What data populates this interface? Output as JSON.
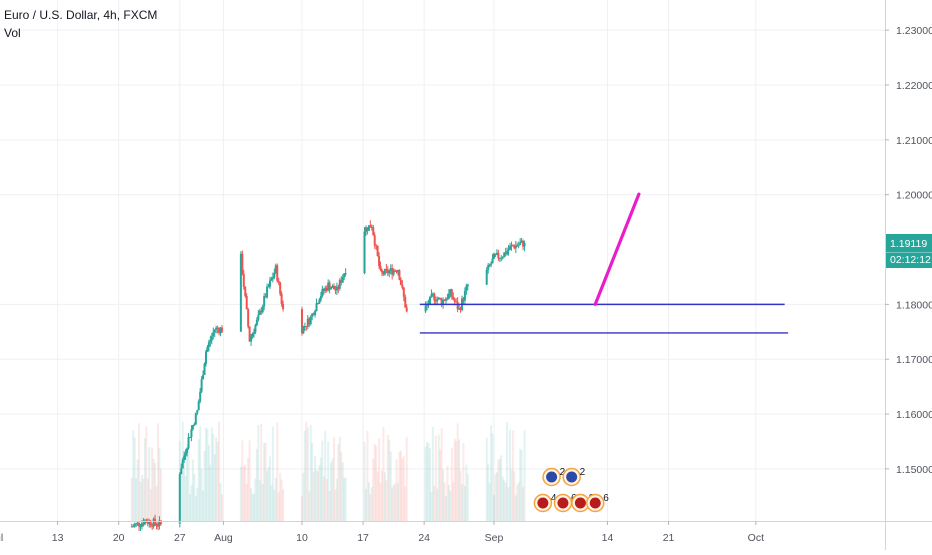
{
  "legend": {
    "symbol": "Euro / U.S. Dollar, 4h, FXCM",
    "volume_label": "Vol"
  },
  "price_scale": {
    "labels": [
      "1.23000",
      "1.22000",
      "1.21000",
      "1.20000",
      "1.18000",
      "1.17000",
      "1.16000",
      "1.15000"
    ],
    "current_price": "1.19119",
    "countdown": "02:12:12",
    "badge_color": "#26a69a"
  },
  "chart_data": {
    "type": "candlestick",
    "symbol": "EURUSD",
    "timeframe": "4h",
    "source": "FXCM",
    "x_tick_labels": [
      "Jul",
      "13",
      "20",
      "27",
      "Aug",
      "10",
      "17",
      "24",
      "Sep",
      "14",
      "21",
      "Oct"
    ],
    "y_tick_labels": [
      "1.23000",
      "1.22000",
      "1.21000",
      "1.20000",
      "1.18000",
      "1.17000",
      "1.16000",
      "1.15000"
    ],
    "ylim": [
      1.1405,
      1.2355
    ],
    "xlim_days": [
      0.4,
      101.8
    ],
    "colors": {
      "up": "#26a69a",
      "down": "#ef5350",
      "support": "#3333cc",
      "projection": "#e91ec8"
    },
    "close_path": {
      "day": [
        15.5,
        17,
        19,
        20,
        21,
        22,
        23,
        24,
        25,
        26,
        27,
        28,
        29,
        30,
        31,
        32,
        33,
        34,
        35,
        36,
        37,
        38,
        39,
        40,
        41,
        42,
        43,
        44,
        45,
        46,
        47,
        48,
        49,
        50,
        51,
        52,
        53,
        54,
        55,
        56,
        57,
        58,
        59,
        60,
        60.5
      ],
      "price": [
        1.1395,
        1.1405,
        1.1398,
        1.1445,
        1.1495,
        1.1555,
        1.1605,
        1.1715,
        1.1755,
        1.1755,
        1.1805,
        1.1885,
        1.1735,
        1.1775,
        1.1825,
        1.1865,
        1.1775,
        1.1765,
        1.1755,
        1.1775,
        1.1815,
        1.1835,
        1.1825,
        1.1865,
        1.1895,
        1.1935,
        1.1945,
        1.1855,
        1.186,
        1.1865,
        1.1785,
        1.18,
        1.179,
        1.1815,
        1.1805,
        1.182,
        1.179,
        1.1835,
        1.18,
        1.1855,
        1.1885,
        1.189,
        1.1905,
        1.191,
        1.19119
      ]
    },
    "annotations": {
      "support_lines": [
        {
          "from_day": 48.5,
          "to_day": 90.3,
          "price": 1.18
        },
        {
          "from_day": 48.5,
          "to_day": 90.7,
          "price": 1.1748
        }
      ],
      "projection_line": {
        "from_day": 68.6,
        "from_price": 1.18,
        "to_day": 73.6,
        "to_price": 1.2001
      }
    },
    "event_badges": [
      "2",
      "2",
      "4",
      "6",
      "6",
      "6"
    ]
  }
}
